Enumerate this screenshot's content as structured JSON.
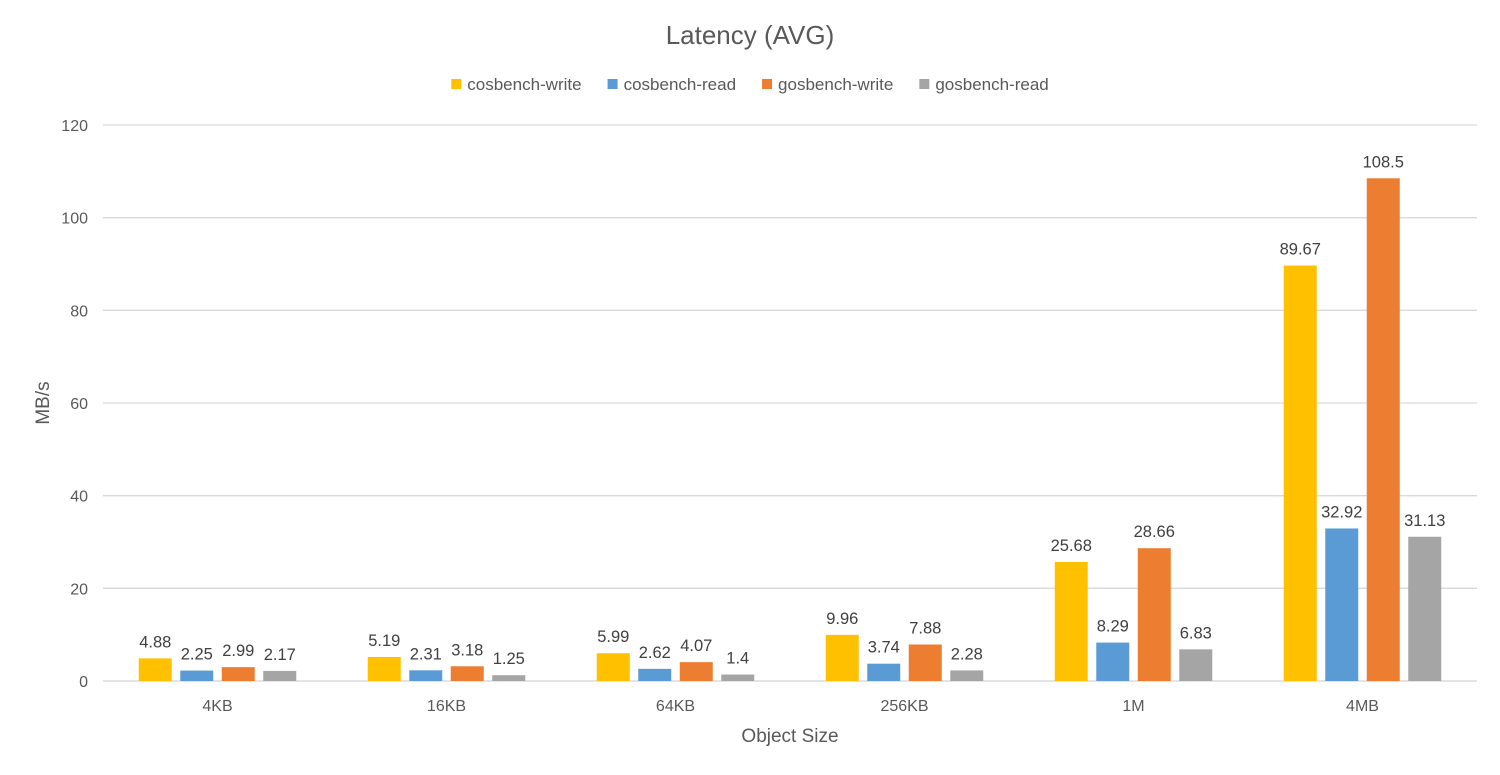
{
  "chart_data": {
    "type": "bar",
    "title": "Latency (AVG)",
    "xlabel": "Object Size",
    "ylabel": "MB/s",
    "categories": [
      "4KB",
      "16KB",
      "64KB",
      "256KB",
      "1M",
      "4MB"
    ],
    "series": [
      {
        "name": "cosbench-write",
        "color": "#ffc000",
        "values": [
          4.88,
          5.19,
          5.99,
          9.96,
          25.68,
          89.67
        ]
      },
      {
        "name": "cosbench-read",
        "color": "#5b9bd5",
        "values": [
          2.25,
          2.31,
          2.62,
          3.74,
          8.29,
          32.92
        ]
      },
      {
        "name": "gosbench-write",
        "color": "#ed7d31",
        "values": [
          2.99,
          3.18,
          4.07,
          7.88,
          28.66,
          108.5
        ]
      },
      {
        "name": "gosbench-read",
        "color": "#a5a5a5",
        "values": [
          2.17,
          1.25,
          1.4,
          2.28,
          6.83,
          31.13
        ]
      }
    ],
    "ylim": [
      0,
      120
    ],
    "yticks": [
      0,
      20,
      40,
      60,
      80,
      100,
      120
    ],
    "grid": true,
    "legend": "top-center",
    "data_labels": true
  }
}
